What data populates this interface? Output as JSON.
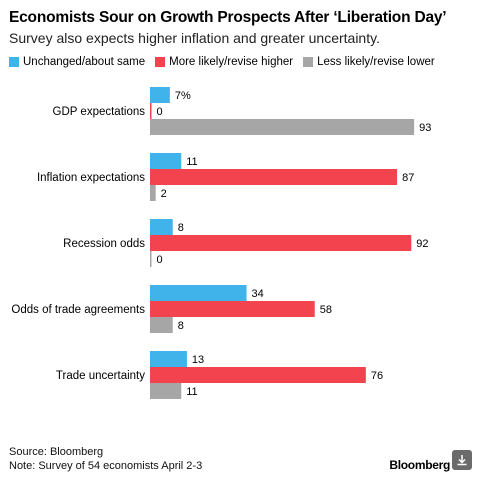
{
  "header": {
    "title": "Economists Sour on Growth Prospects After ‘Liberation Day’",
    "subtitle": "Survey also expects higher inflation and greater uncertainty."
  },
  "chart_data": {
    "type": "bar",
    "orientation": "horizontal",
    "categories": [
      "GDP expectations",
      "Inflation expectations",
      "Recession odds",
      "Odds of trade agreements",
      "Trade uncertainty"
    ],
    "series": [
      {
        "name": "Unchanged/about same",
        "color": "#3fb3ea",
        "values": [
          7,
          11,
          8,
          34,
          13
        ],
        "labels": [
          "7%",
          "11",
          "8",
          "34",
          "13"
        ]
      },
      {
        "name": "More likely/revise higher",
        "color": "#f2434f",
        "values": [
          0,
          87,
          92,
          58,
          76
        ],
        "labels": [
          "0",
          "87",
          "92",
          "58",
          "76"
        ]
      },
      {
        "name": "Less likely/revise lower",
        "color": "#a6a6a6",
        "values": [
          93,
          2,
          0,
          8,
          11
        ],
        "labels": [
          "93",
          "2",
          "0",
          "8",
          "11"
        ]
      }
    ],
    "xlim": [
      0,
      100
    ],
    "grid": false,
    "legend": "top-left"
  },
  "footer": {
    "source": "Source: Bloomberg",
    "note": "Note: Survey of 54 economists April 2-3",
    "brand": "Bloomberg"
  },
  "icons": {
    "download": "download-icon"
  }
}
